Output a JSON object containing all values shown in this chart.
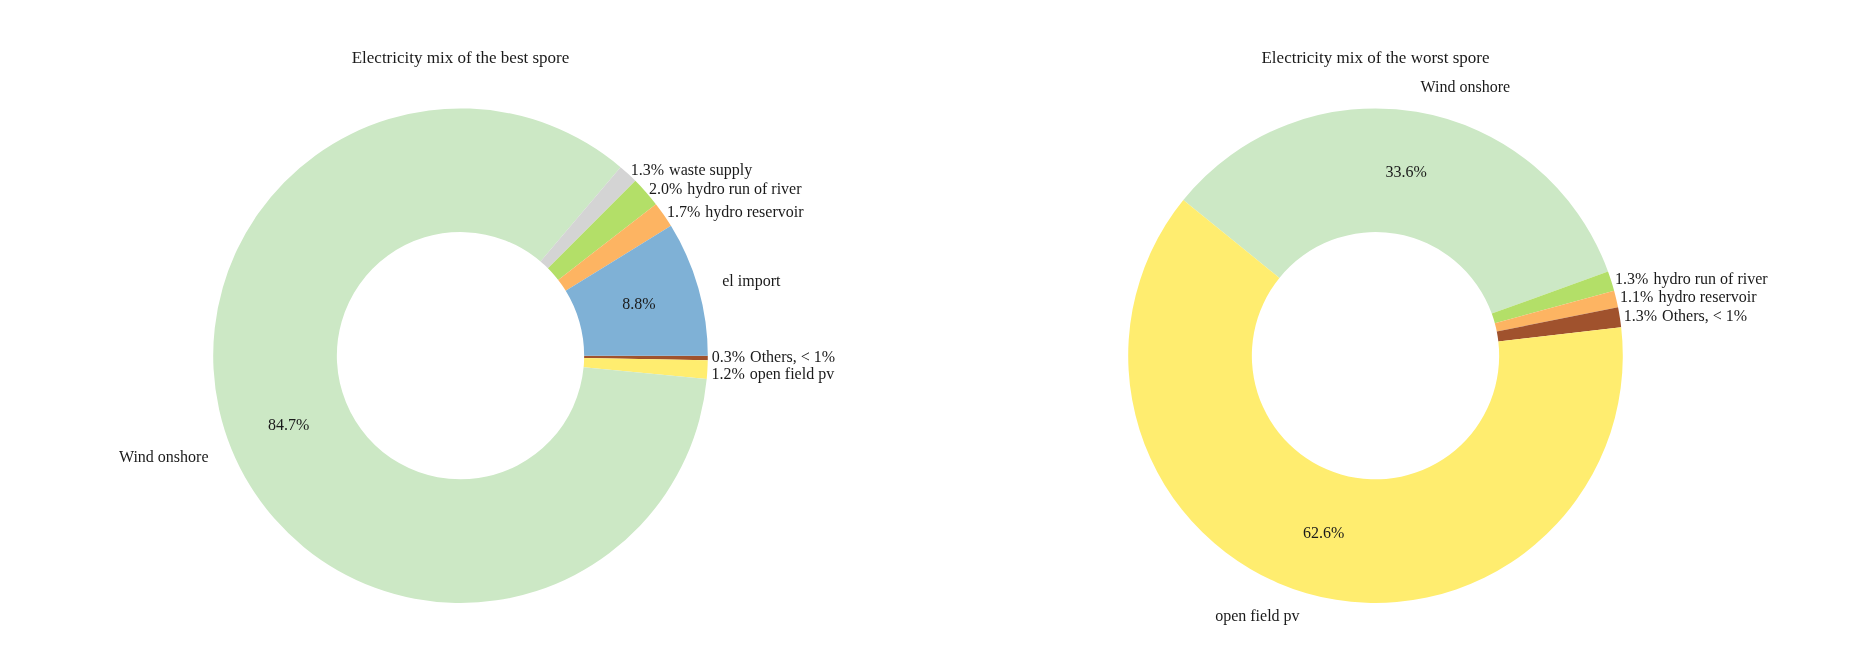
{
  "chart_data": [
    {
      "type": "donut",
      "title": "Electricity mix of the best spore",
      "categories": [
        "Others, < 1%",
        "open field pv",
        "Wind onshore",
        "waste supply",
        "hydro run of river",
        "hydro reservoir",
        "el import"
      ],
      "values": [
        0.3,
        1.2,
        84.7,
        1.3,
        2.0,
        1.7,
        8.8
      ],
      "value_labels": [
        "0.3%",
        "1.2%",
        "84.7%",
        "1.3%",
        "2.0%",
        "1.7%",
        "8.8%"
      ],
      "colors": [
        "#a0522d",
        "#ffed6f",
        "#cce8c5",
        "#d4d4d4",
        "#b3df68",
        "#fdb462",
        "#7fb1d6"
      ]
    },
    {
      "type": "donut",
      "title": "Electricity mix of the worst spore",
      "categories": [
        "Wind onshore",
        "hydro run of river",
        "hydro reservoir",
        "Others, < 1%",
        "open field pv"
      ],
      "values": [
        33.6,
        1.3,
        1.1,
        1.3,
        62.6
      ],
      "value_labels": [
        "33.6%",
        "1.3%",
        "1.1%",
        "1.3%",
        "62.6%"
      ],
      "colors": [
        "#cce8c5",
        "#b3df68",
        "#fdb462",
        "#a0522d",
        "#ffed6f"
      ]
    }
  ]
}
